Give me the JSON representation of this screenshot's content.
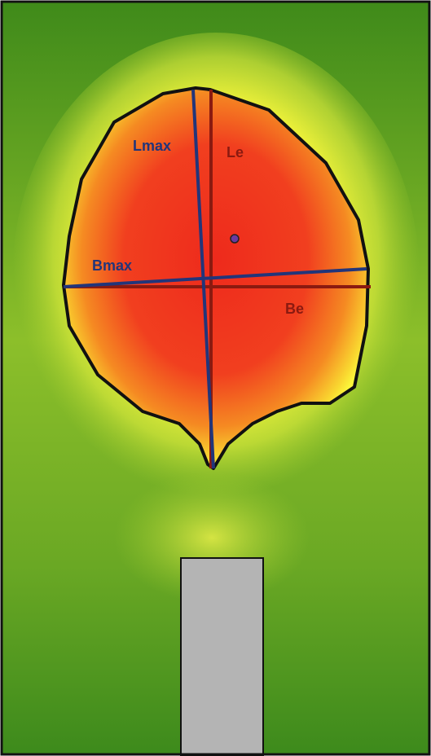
{
  "annotations": [
    {
      "text": "Lmax"
    },
    {
      "text": "Le"
    },
    {
      "text": "Bmax"
    },
    {
      "text": "Be"
    }
  ]
}
